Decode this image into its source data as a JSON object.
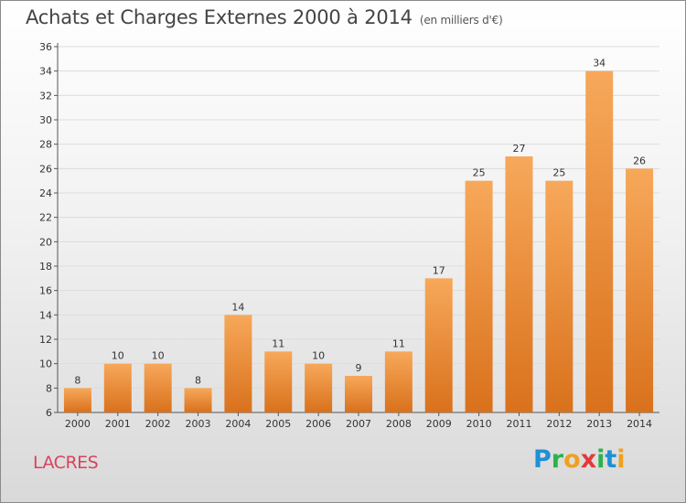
{
  "header": {
    "title": "Achats et Charges Externes 2000 à 2014",
    "subtitle": "(en milliers d'€)"
  },
  "footer": {
    "place": "LACRES",
    "logo_letters": [
      {
        "char": "P",
        "color": "#1f8fd6"
      },
      {
        "char": "r",
        "color": "#2bb24c"
      },
      {
        "char": "o",
        "color": "#f0a020"
      },
      {
        "char": "x",
        "color": "#e23a3a"
      },
      {
        "char": "i",
        "color": "#2bb24c"
      },
      {
        "char": "t",
        "color": "#1f8fd6"
      },
      {
        "char": "i",
        "color": "#f0a020"
      }
    ]
  },
  "chart_data": {
    "type": "bar",
    "categories": [
      "2000",
      "2001",
      "2002",
      "2003",
      "2004",
      "2005",
      "2006",
      "2007",
      "2008",
      "2009",
      "2010",
      "2011",
      "2012",
      "2013",
      "2014"
    ],
    "values": [
      8,
      10,
      10,
      8,
      14,
      11,
      10,
      9,
      11,
      17,
      25,
      27,
      25,
      34,
      26
    ],
    "ylim": [
      6,
      36
    ],
    "yticks": [
      6,
      8,
      10,
      12,
      14,
      16,
      18,
      20,
      22,
      24,
      26,
      28,
      30,
      32,
      34,
      36
    ],
    "grid": true,
    "bar_color_top": "#f7a85a",
    "bar_color_bottom": "#d9711c"
  }
}
